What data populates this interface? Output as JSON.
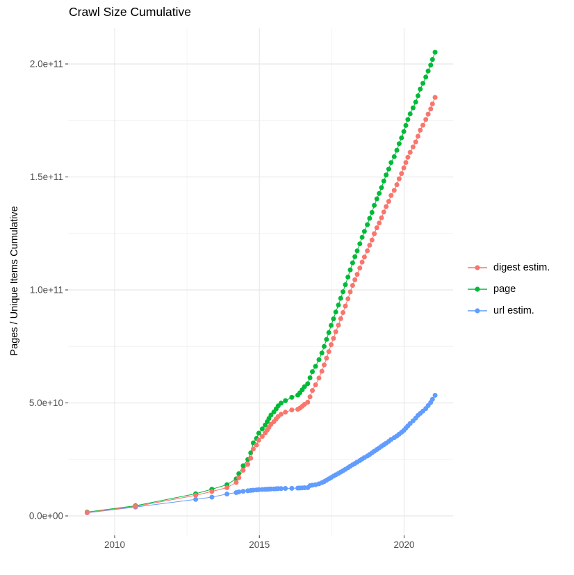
{
  "chart_data": {
    "type": "line",
    "title": "Crawl Size Cumulative",
    "xlabel": "",
    "ylabel": "Pages / Unique Items Cumulative",
    "legend_position": "right",
    "grid": true,
    "background": "#ffffff",
    "grid_color": "#e8e8e8",
    "minor_grid_color": "#f2f2f2",
    "axis_text_color": "#4d4d4d",
    "tick_color": "#333333",
    "x_axis": {
      "range": [
        2008.4,
        2021.7
      ],
      "ticks": [
        {
          "value": 2010,
          "label": "2010"
        },
        {
          "value": 2015,
          "label": "2015"
        },
        {
          "value": 2020,
          "label": "2020"
        }
      ],
      "minor_ticks": [
        2012.5,
        2017.5
      ]
    },
    "y_axis": {
      "note": "values stored in billions (1e9) of pages / unique items",
      "range_billions": [
        -10,
        216
      ],
      "ticks": [
        {
          "value": 0,
          "label": "0.0e+00"
        },
        {
          "value": 50,
          "label": "5.0e+10"
        },
        {
          "value": 100,
          "label": "1.0e+11"
        },
        {
          "value": 150,
          "label": "1.5e+11"
        },
        {
          "value": 200,
          "label": "2.0e+11"
        }
      ],
      "minor_ticks": [
        25,
        75,
        125,
        175
      ]
    },
    "x": [
      2009.05,
      2010.72,
      2012.8,
      2013.36,
      2013.88,
      2014.2,
      2014.29,
      2014.44,
      2014.6,
      2014.7,
      2014.79,
      2014.9,
      2014.98,
      2015.1,
      2015.2,
      2015.27,
      2015.33,
      2015.4,
      2015.5,
      2015.58,
      2015.65,
      2015.75,
      2015.9,
      2016.12,
      2016.33,
      2016.4,
      2016.48,
      2016.56,
      2016.67,
      2016.75,
      2016.83,
      2016.94,
      2017.06,
      2017.16,
      2017.24,
      2017.32,
      2017.4,
      2017.48,
      2017.56,
      2017.64,
      2017.73,
      2017.81,
      2017.89,
      2017.97,
      2018.06,
      2018.14,
      2018.22,
      2018.3,
      2018.38,
      2018.47,
      2018.55,
      2018.63,
      2018.73,
      2018.81,
      2018.89,
      2018.97,
      2019.06,
      2019.14,
      2019.22,
      2019.3,
      2019.38,
      2019.47,
      2019.55,
      2019.66,
      2019.75,
      2019.83,
      2019.91,
      2019.99,
      2020.06,
      2020.13,
      2020.21,
      2020.31,
      2020.4,
      2020.48,
      2020.56,
      2020.65,
      2020.75,
      2020.83,
      2020.92,
      2020.98,
      2021.07
    ],
    "series": [
      {
        "name": "digest estim.",
        "color": "#F8766D",
        "values_billions": [
          1.5,
          4.2,
          9.1,
          10.8,
          12.5,
          14.8,
          16.9,
          20.2,
          22.8,
          25.5,
          29.6,
          31.4,
          33.5,
          35.2,
          36.7,
          38.0,
          39.2,
          40.5,
          41.7,
          42.9,
          44.0,
          45.0,
          45.9,
          46.9,
          47.2,
          47.7,
          48.5,
          49.4,
          50.3,
          52.7,
          55.5,
          58.0,
          61.0,
          64.0,
          66.8,
          69.8,
          72.7,
          75.8,
          78.6,
          81.5,
          84.4,
          87.3,
          90.0,
          92.9,
          96.1,
          99.1,
          102.0,
          104.5,
          106.9,
          109.7,
          112.3,
          114.6,
          117.3,
          119.8,
          122.1,
          124.9,
          127.5,
          129.6,
          131.9,
          134.5,
          136.9,
          139.2,
          141.8,
          144.1,
          146.6,
          149.2,
          151.5,
          154.0,
          156.4,
          158.7,
          160.9,
          163.3,
          165.5,
          168.0,
          170.7,
          172.9,
          175.4,
          177.8,
          180.1,
          182.3,
          185.2
        ]
      },
      {
        "name": "page",
        "color": "#00BA38",
        "values_billions": [
          1.7,
          4.5,
          9.8,
          11.8,
          13.8,
          16.4,
          18.7,
          22.2,
          25.0,
          27.9,
          32.3,
          34.3,
          36.6,
          38.5,
          40.2,
          41.7,
          43.1,
          44.6,
          46.0,
          47.4,
          48.7,
          49.9,
          51.0,
          52.5,
          53.5,
          54.5,
          55.8,
          57.2,
          58.5,
          61.1,
          63.8,
          66.2,
          69.1,
          72.1,
          75.0,
          78.1,
          81.1,
          84.3,
          87.2,
          90.2,
          93.3,
          96.3,
          99.2,
          102.3,
          105.7,
          108.9,
          112.0,
          114.7,
          117.3,
          120.4,
          123.3,
          125.9,
          128.9,
          131.7,
          134.3,
          137.4,
          140.3,
          142.7,
          145.3,
          148.2,
          150.9,
          153.5,
          156.4,
          159.0,
          161.8,
          164.7,
          167.3,
          170.1,
          172.8,
          175.4,
          177.9,
          180.6,
          183.1,
          185.9,
          188.9,
          191.4,
          194.2,
          196.9,
          199.5,
          202.0,
          205.2
        ]
      },
      {
        "name": "url estim.",
        "color": "#619CFF",
        "values_billions": [
          1.4,
          3.9,
          7.3,
          8.3,
          9.7,
          10.3,
          10.6,
          10.9,
          11.1,
          11.25,
          11.4,
          11.5,
          11.6,
          11.7,
          11.75,
          11.8,
          11.85,
          11.9,
          11.95,
          12.0,
          12.05,
          12.1,
          12.15,
          12.2,
          12.3,
          12.35,
          12.4,
          12.45,
          12.5,
          13.4,
          13.6,
          13.8,
          14.2,
          14.7,
          15.2,
          15.8,
          16.4,
          17.0,
          17.6,
          18.2,
          18.8,
          19.4,
          20.0,
          20.6,
          21.3,
          22.0,
          22.6,
          23.2,
          23.8,
          24.5,
          25.2,
          25.8,
          26.5,
          27.2,
          27.9,
          28.6,
          29.4,
          30.1,
          30.8,
          31.5,
          32.2,
          33.0,
          33.8,
          34.6,
          35.4,
          36.2,
          37.0,
          37.8,
          38.8,
          39.8,
          40.9,
          42.1,
          43.3,
          44.5,
          45.4,
          46.4,
          47.5,
          48.8,
          50.2,
          51.6,
          53.4
        ]
      }
    ]
  }
}
